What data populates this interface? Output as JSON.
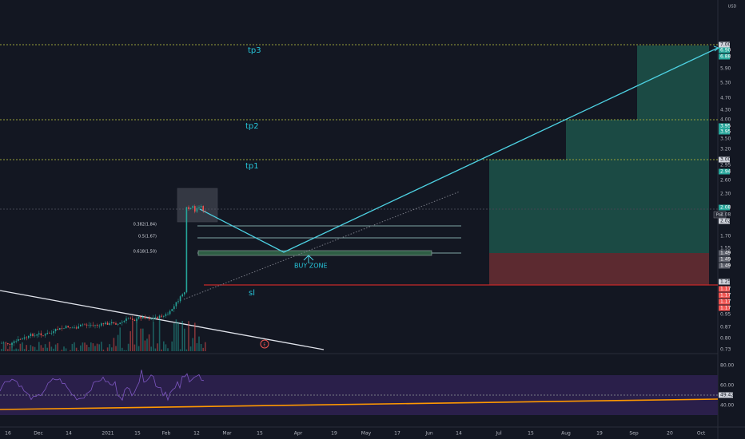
{
  "price_axis": {
    "currency": "USD",
    "labels": [
      "7.00",
      "6.90",
      "6.88",
      "5.90",
      "5.30",
      "4.70",
      "4.30",
      "4.00",
      "3.95",
      "3.95",
      "3.50",
      "3.20",
      "3.00",
      "2.95",
      "2.94",
      "2.60",
      "2.30",
      "2.08",
      "2.08",
      "2.02",
      "1.70",
      "1.55",
      "1.49",
      "1.49",
      "1.49",
      "1.25",
      "1.17",
      "1.17",
      "1.17",
      "1.17",
      "0.95",
      "0.87",
      "0.80",
      "0.73"
    ],
    "position_tag": "Pos"
  },
  "indicator_axis": {
    "labels": [
      "80.00",
      "60.00",
      "49.42",
      "40.00"
    ]
  },
  "time_axis": {
    "labels": [
      "16",
      "Dec",
      "14",
      "2021",
      "15",
      "Feb",
      "12",
      "Mar",
      "15",
      "Apr",
      "19",
      "May",
      "17",
      "Jun",
      "14",
      "Jul",
      "15",
      "Aug",
      "19",
      "Sep",
      "20",
      "Oct"
    ]
  },
  "annotations": {
    "tp3": "tp3",
    "tp2": "tp2",
    "tp1": "tp1",
    "sl": "sl",
    "buy_zone": "BUY ZONE",
    "fib": [
      "0.382(1.84)",
      "0.5(1.67)",
      "0.618(1.50)"
    ],
    "event": "E"
  }
}
